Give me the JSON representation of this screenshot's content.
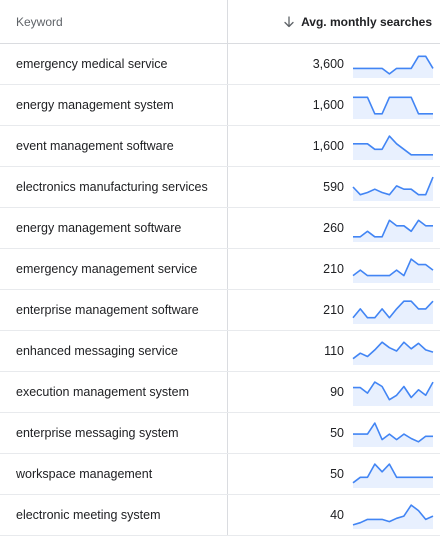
{
  "header": {
    "keyword_label": "Keyword",
    "avg_label": "Avg. monthly searches",
    "sort_icon": "arrow-down-icon"
  },
  "colors": {
    "trend_line": "#4285f4",
    "trend_fill": "#e8f0fe",
    "divider": "#dadce0"
  },
  "rows": [
    {
      "keyword": "emergency medical service",
      "avg": "3,600",
      "trend": [
        0.3,
        0.3,
        0.3,
        0.3,
        0.3,
        0.05,
        0.3,
        0.3,
        0.3,
        0.85,
        0.85,
        0.3
      ]
    },
    {
      "keyword": "energy management system",
      "avg": "1,600",
      "trend": [
        0.85,
        0.85,
        0.85,
        0.1,
        0.1,
        0.85,
        0.85,
        0.85,
        0.85,
        0.1,
        0.1,
        0.1
      ]
    },
    {
      "keyword": "event management software",
      "avg": "1,600",
      "trend": [
        0.6,
        0.6,
        0.6,
        0.35,
        0.35,
        0.95,
        0.6,
        0.35,
        0.1,
        0.1,
        0.1,
        0.1
      ]
    },
    {
      "keyword": "electronics manufacturing services",
      "avg": "590",
      "trend": [
        0.5,
        0.15,
        0.25,
        0.4,
        0.25,
        0.15,
        0.55,
        0.4,
        0.4,
        0.15,
        0.15,
        0.95
      ]
    },
    {
      "keyword": "energy management software",
      "avg": "260",
      "trend": [
        0.1,
        0.1,
        0.35,
        0.1,
        0.1,
        0.85,
        0.6,
        0.6,
        0.35,
        0.85,
        0.6,
        0.6
      ]
    },
    {
      "keyword": "emergency management service",
      "avg": "210",
      "trend": [
        0.2,
        0.45,
        0.2,
        0.2,
        0.2,
        0.2,
        0.45,
        0.2,
        0.95,
        0.7,
        0.7,
        0.45
      ]
    },
    {
      "keyword": "enterprise management software",
      "avg": "210",
      "trend": [
        0.15,
        0.55,
        0.15,
        0.15,
        0.55,
        0.15,
        0.55,
        0.9,
        0.9,
        0.55,
        0.55,
        0.9
      ]
    },
    {
      "keyword": "enhanced messaging service",
      "avg": "110",
      "trend": [
        0.15,
        0.4,
        0.25,
        0.55,
        0.9,
        0.65,
        0.5,
        0.9,
        0.6,
        0.85,
        0.55,
        0.45
      ]
    },
    {
      "keyword": "execution management system",
      "avg": "90",
      "trend": [
        0.7,
        0.7,
        0.45,
        0.95,
        0.75,
        0.15,
        0.35,
        0.75,
        0.25,
        0.6,
        0.35,
        0.95
      ]
    },
    {
      "keyword": "enterprise messaging system",
      "avg": "50",
      "trend": [
        0.45,
        0.45,
        0.45,
        0.95,
        0.2,
        0.45,
        0.2,
        0.45,
        0.25,
        0.1,
        0.35,
        0.35
      ]
    },
    {
      "keyword": "workspace management",
      "avg": "50",
      "trend": [
        0.1,
        0.35,
        0.35,
        0.95,
        0.6,
        0.95,
        0.35,
        0.35,
        0.35,
        0.35,
        0.35,
        0.35
      ]
    },
    {
      "keyword": "electronic meeting system",
      "avg": "40",
      "trend": [
        0.05,
        0.15,
        0.3,
        0.3,
        0.3,
        0.2,
        0.35,
        0.45,
        0.95,
        0.7,
        0.3,
        0.45
      ]
    }
  ]
}
